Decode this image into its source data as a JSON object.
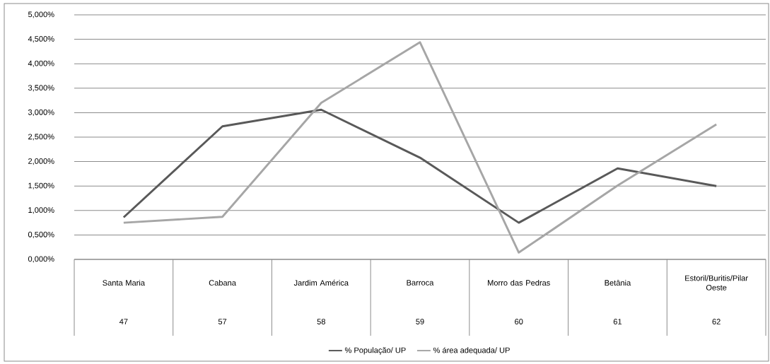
{
  "chart_data": {
    "type": "line",
    "categories": [
      "Santa Maria",
      "Cabana",
      "Jardim América",
      "Barroca",
      "Morro das Pedras",
      "Betânia",
      "Estoril/Buritis/Pilar Oeste"
    ],
    "annotations": [
      "47",
      "57",
      "58",
      "59",
      "60",
      "61",
      "62"
    ],
    "series": [
      {
        "name": "% População/ UP",
        "color": "#595959",
        "values": [
          0.86,
          2.72,
          3.06,
          2.08,
          0.75,
          1.86,
          1.5
        ]
      },
      {
        "name": "% área adequada/ UP",
        "color": "#a6a6a6",
        "values": [
          0.75,
          0.87,
          3.2,
          4.44,
          0.14,
          1.51,
          2.76
        ]
      }
    ],
    "ylim": [
      0,
      5
    ],
    "yticks": [
      {
        "value": 0,
        "label": "0,000%"
      },
      {
        "value": 0.5,
        "label": "0,500%"
      },
      {
        "value": 1,
        "label": "1,000%"
      },
      {
        "value": 1.5,
        "label": "1,500%"
      },
      {
        "value": 2,
        "label": "2,000%"
      },
      {
        "value": 2.5,
        "label": "2,500%"
      },
      {
        "value": 3,
        "label": "3,000%"
      },
      {
        "value": 3.5,
        "label": "3,500%"
      },
      {
        "value": 4,
        "label": "4,000%"
      },
      {
        "value": 4.5,
        "label": "4,500%"
      },
      {
        "value": 5,
        "label": "5,000%"
      }
    ],
    "grid": "y",
    "legend": "bottom",
    "marker": "none",
    "line_style": "solid"
  }
}
